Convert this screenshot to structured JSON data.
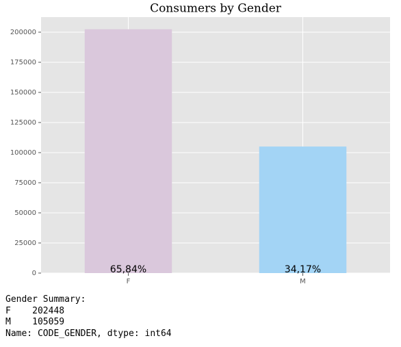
{
  "chart_data": {
    "type": "bar",
    "title": "Consumers by Gender",
    "categories": [
      "F",
      "M"
    ],
    "values": [
      202448,
      105059
    ],
    "colors": [
      "#dac8dc",
      "#a3d4f5"
    ],
    "annotations": [
      "65,84%",
      "34,17%"
    ],
    "ylim": [
      0,
      212500
    ],
    "yticks": [
      0,
      25000,
      50000,
      75000,
      100000,
      125000,
      150000,
      175000,
      200000
    ],
    "grid": true
  },
  "output": {
    "lines": [
      "Gender Summary:",
      "F    202448",
      "M    105059",
      "Name: CODE_GENDER, dtype: int64"
    ]
  }
}
